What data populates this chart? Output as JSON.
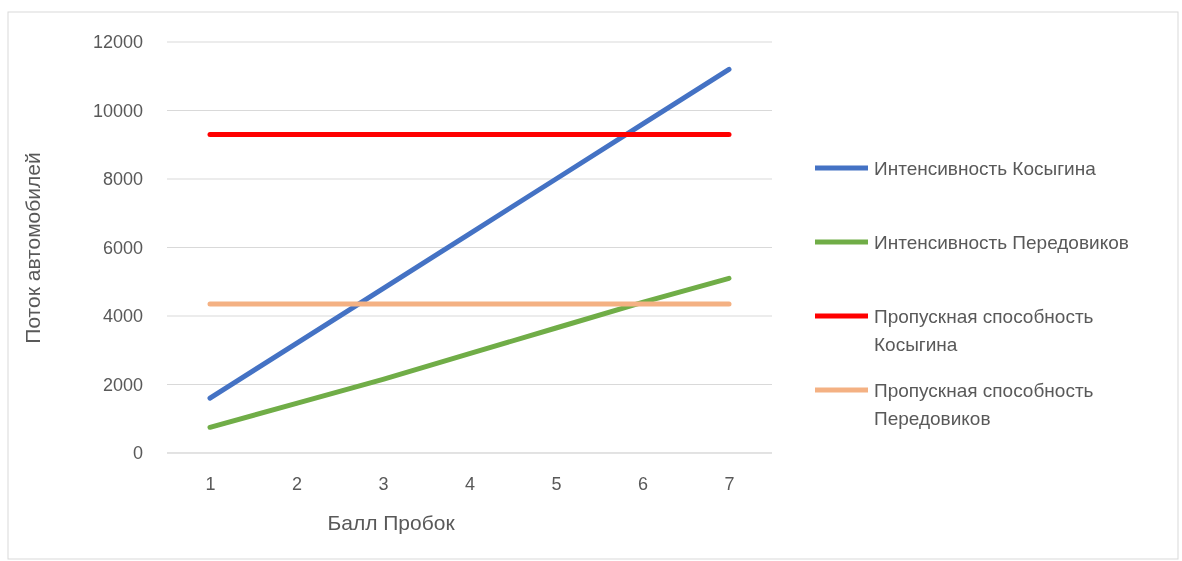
{
  "chart_data": {
    "type": "line",
    "xlabel": "Балл Пробок",
    "ylabel": "Поток автомобилей",
    "categories": [
      "1",
      "2",
      "3",
      "4",
      "5",
      "6",
      "7"
    ],
    "series": [
      {
        "name": "Интенсивность Косыгина",
        "color": "#4472c4",
        "values": [
          1600,
          3200,
          4800,
          6400,
          8000,
          9600,
          11200
        ]
      },
      {
        "name": "Интенсивность Передовиков",
        "color": "#70ad47",
        "values": [
          750,
          1450,
          2150,
          2900,
          3650,
          4400,
          5100
        ]
      },
      {
        "name": "Пропускная способность Косыгина",
        "color": "#ff0000",
        "values": [
          9300,
          9300,
          9300,
          9300,
          9300,
          9300,
          9300
        ]
      },
      {
        "name": "Пропускная способность Передовиков",
        "color": "#f4b183",
        "values": [
          4350,
          4350,
          4350,
          4350,
          4350,
          4350,
          4350
        ]
      }
    ],
    "ylim": [
      0,
      12000
    ],
    "yticks": [
      0,
      2000,
      4000,
      6000,
      8000,
      10000,
      12000
    ],
    "grid": "y",
    "legend": "right",
    "marker": "none",
    "line_style": "solid"
  }
}
